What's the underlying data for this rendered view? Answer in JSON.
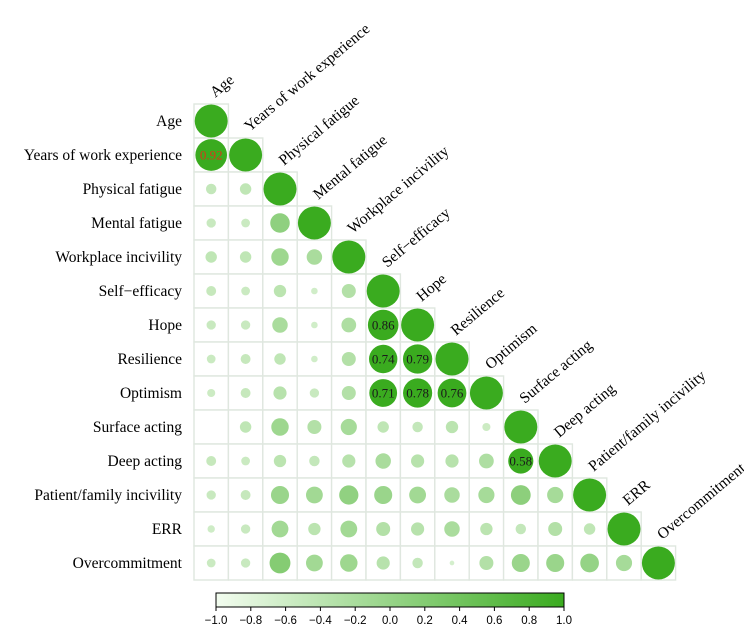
{
  "chart_data": {
    "type": "heatmap",
    "subtype": "correlation-matrix-lower-triangle",
    "title": "",
    "variables": [
      "Age",
      "Years of work experience",
      "Physical fatigue",
      "Mental fatigue",
      "Workplace incivility",
      "Self−efficacy",
      "Hope",
      "Resilience",
      "Optimism",
      "Surface acting",
      "Deep acting",
      "Patient/family incivility",
      "ERR",
      "Overcommitment"
    ],
    "matrix": [
      [
        1.0
      ],
      [
        0.92,
        1.0
      ],
      [
        0.1,
        0.12,
        1.0
      ],
      [
        0.08,
        0.07,
        0.35,
        1.0
      ],
      [
        0.12,
        0.12,
        0.28,
        0.22,
        1.0
      ],
      [
        0.09,
        0.07,
        0.14,
        0.04,
        0.18,
        1.0
      ],
      [
        0.08,
        0.08,
        0.22,
        0.04,
        0.2,
        0.86,
        1.0
      ],
      [
        0.07,
        0.09,
        0.12,
        0.04,
        0.18,
        0.74,
        0.79,
        1.0
      ],
      [
        0.06,
        0.09,
        0.16,
        0.08,
        0.18,
        0.71,
        0.78,
        0.76,
        1.0
      ],
      [
        0.0,
        0.12,
        0.28,
        0.18,
        0.24,
        0.12,
        0.1,
        0.14,
        0.06,
        1.0
      ],
      [
        0.09,
        0.07,
        0.14,
        0.1,
        0.16,
        0.22,
        0.16,
        0.16,
        0.2,
        0.58,
        1.0
      ],
      [
        0.08,
        0.09,
        0.3,
        0.26,
        0.34,
        0.3,
        0.26,
        0.22,
        0.24,
        0.36,
        0.24,
        1.0
      ],
      [
        0.05,
        0.08,
        0.26,
        0.14,
        0.26,
        0.18,
        0.16,
        0.22,
        0.14,
        0.1,
        0.18,
        0.12,
        1.0
      ],
      [
        0.07,
        0.08,
        0.4,
        0.26,
        0.28,
        0.16,
        0.1,
        0.02,
        0.18,
        0.3,
        0.3,
        0.32,
        0.24,
        1.0
      ]
    ],
    "labeled_cells": [
      {
        "row": 1,
        "col": 0,
        "label": "0.92"
      },
      {
        "row": 6,
        "col": 5,
        "label": "0.86"
      },
      {
        "row": 7,
        "col": 5,
        "label": "0.74"
      },
      {
        "row": 7,
        "col": 6,
        "label": "0.79"
      },
      {
        "row": 8,
        "col": 5,
        "label": "0.71"
      },
      {
        "row": 8,
        "col": 6,
        "label": "0.78"
      },
      {
        "row": 8,
        "col": 7,
        "label": "0.76"
      },
      {
        "row": 10,
        "col": 9,
        "label": "0.58"
      }
    ],
    "colorbar": {
      "range": [
        -1.0,
        1.0
      ],
      "ticks": [
        "−1.0",
        "−0.8",
        "−0.6",
        "−0.4",
        "−0.2",
        "0.0",
        "0.2",
        "0.4",
        "0.6",
        "0.8",
        "1.0"
      ],
      "low_color": "#f3fdf0",
      "high_color": "#3aab1f"
    },
    "colors": {
      "circle_high": "#3aab1f",
      "circle_low": "#f0fbec",
      "highlight_circle": "#3aab1f",
      "highlight_text": "#d43a1a",
      "cell_border": "#dfe7df"
    }
  }
}
